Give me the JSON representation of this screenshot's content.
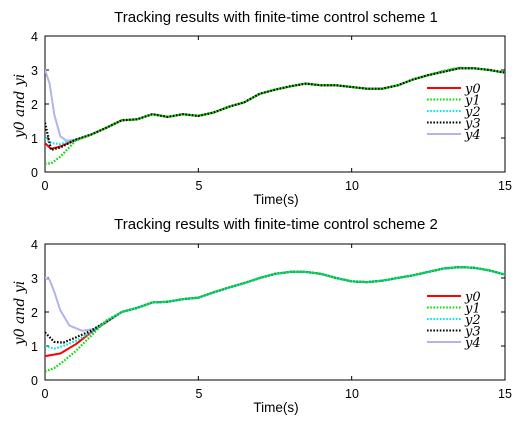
{
  "chart_data": [
    {
      "type": "line",
      "title": "Tracking results with finite-time control scheme 1",
      "xlabel": "Time(s)",
      "ylabel": "y0 and yi",
      "xlim": [
        0,
        15
      ],
      "ylim": [
        0,
        4
      ],
      "xticks": [
        "0",
        "5",
        "10",
        "15"
      ],
      "yticks": [
        "0",
        "1",
        "2",
        "3",
        "4"
      ],
      "grid": false,
      "legend_position": "bottom-right",
      "series": [
        {
          "name": "y0",
          "color": "#ff0000",
          "dash": "solid",
          "x": [
            0,
            0.2,
            0.5,
            1,
            1.5,
            2,
            2.5,
            3,
            3.5,
            4,
            4.5,
            5,
            5.5,
            6,
            6.5,
            7,
            7.5,
            8,
            8.5,
            9,
            9.5,
            10,
            10.5,
            11,
            11.5,
            12,
            12.5,
            13,
            13.5,
            14,
            14.5,
            15
          ],
          "y": [
            0.85,
            0.68,
            0.75,
            0.95,
            1.1,
            1.3,
            1.52,
            1.55,
            1.7,
            1.62,
            1.7,
            1.65,
            1.75,
            1.92,
            2.05,
            2.3,
            2.42,
            2.52,
            2.6,
            2.55,
            2.55,
            2.5,
            2.45,
            2.45,
            2.55,
            2.72,
            2.85,
            2.95,
            3.05,
            3.05,
            3.0,
            2.92
          ]
        },
        {
          "name": "y1",
          "color": "#00dd00",
          "dash": "dotted",
          "x": [
            0,
            0.2,
            0.5,
            1,
            1.5,
            2,
            2.5,
            3,
            3.5,
            4,
            4.5,
            5,
            5.5,
            6,
            6.5,
            7,
            7.5,
            8,
            8.5,
            9,
            9.5,
            10,
            10.5,
            11,
            11.5,
            12,
            12.5,
            13,
            13.5,
            14,
            14.5,
            15
          ],
          "y": [
            0.25,
            0.25,
            0.45,
            0.92,
            1.1,
            1.3,
            1.52,
            1.55,
            1.7,
            1.62,
            1.7,
            1.65,
            1.75,
            1.92,
            2.05,
            2.3,
            2.42,
            2.52,
            2.6,
            2.55,
            2.55,
            2.5,
            2.45,
            2.45,
            2.55,
            2.72,
            2.85,
            2.98,
            3.07,
            3.05,
            3.0,
            2.92
          ]
        },
        {
          "name": "y2",
          "color": "#00e5e5",
          "dash": "dotted",
          "x": [
            0,
            0.2,
            0.5,
            1,
            1.5,
            2,
            2.5,
            3,
            3.5,
            4,
            4.5,
            5,
            5.5,
            6,
            6.5,
            7,
            7.5,
            8,
            8.5,
            9,
            9.5,
            10,
            10.5,
            11,
            11.5,
            12,
            12.5,
            13,
            13.5,
            14,
            14.5,
            15
          ],
          "y": [
            1.0,
            0.85,
            0.82,
            0.95,
            1.1,
            1.3,
            1.52,
            1.55,
            1.7,
            1.62,
            1.7,
            1.65,
            1.75,
            1.92,
            2.05,
            2.3,
            2.42,
            2.52,
            2.6,
            2.55,
            2.55,
            2.5,
            2.45,
            2.45,
            2.55,
            2.72,
            2.85,
            2.95,
            3.05,
            3.05,
            3.0,
            2.92
          ]
        },
        {
          "name": "y3",
          "color": "#000000",
          "dash": "dotted",
          "x": [
            0,
            0.2,
            0.5,
            1,
            1.5,
            2,
            2.5,
            3,
            3.5,
            4,
            4.5,
            5,
            5.5,
            6,
            6.5,
            7,
            7.5,
            8,
            8.5,
            9,
            9.5,
            10,
            10.5,
            11,
            11.5,
            12,
            12.5,
            13,
            13.5,
            14,
            14.5,
            15
          ],
          "y": [
            1.45,
            0.65,
            0.72,
            0.95,
            1.1,
            1.3,
            1.52,
            1.55,
            1.7,
            1.62,
            1.7,
            1.65,
            1.75,
            1.92,
            2.05,
            2.3,
            2.42,
            2.52,
            2.6,
            2.55,
            2.55,
            2.5,
            2.45,
            2.45,
            2.55,
            2.72,
            2.85,
            2.95,
            3.05,
            3.05,
            3.0,
            2.92
          ]
        },
        {
          "name": "y4",
          "color": "#b3b3ee",
          "dash": "solid",
          "x": [
            0,
            0.15,
            0.3,
            0.5,
            0.7,
            1,
            1.5,
            2,
            2.5,
            3,
            3.5,
            4,
            4.5,
            5,
            5.5,
            6,
            6.5,
            7,
            7.5,
            8,
            8.5,
            9,
            9.5,
            10,
            10.5,
            11,
            11.5,
            12,
            12.5,
            13,
            13.5,
            14,
            14.5,
            15
          ],
          "y": [
            3.0,
            2.6,
            1.7,
            1.05,
            0.92,
            0.95,
            1.1,
            1.3,
            1.52,
            1.55,
            1.7,
            1.62,
            1.7,
            1.65,
            1.75,
            1.92,
            2.05,
            2.3,
            2.42,
            2.52,
            2.6,
            2.55,
            2.55,
            2.5,
            2.45,
            2.45,
            2.55,
            2.72,
            2.85,
            2.95,
            3.05,
            3.05,
            3.0,
            2.92
          ]
        }
      ]
    },
    {
      "type": "line",
      "title": "Tracking results with finite-time control scheme 2",
      "xlabel": "Time(s)",
      "ylabel": "y0 and yi",
      "xlim": [
        0,
        15
      ],
      "ylim": [
        0,
        4
      ],
      "xticks": [
        "0",
        "5",
        "10",
        "15"
      ],
      "yticks": [
        "0",
        "1",
        "2",
        "3",
        "4"
      ],
      "grid": false,
      "legend_position": "bottom-right",
      "series": [
        {
          "name": "y0",
          "color": "#ff0000",
          "dash": "solid",
          "x": [
            0,
            0.5,
            1,
            1.5,
            2,
            2.5,
            3,
            3.5,
            4,
            4.5,
            5,
            5.5,
            6,
            6.5,
            7,
            7.5,
            8,
            8.5,
            9,
            9.5,
            10,
            10.5,
            11,
            11.5,
            12,
            12.5,
            13,
            13.5,
            14,
            14.5,
            15
          ],
          "y": [
            0.7,
            0.78,
            1.05,
            1.4,
            1.7,
            2.0,
            2.12,
            2.28,
            2.3,
            2.38,
            2.42,
            2.58,
            2.72,
            2.85,
            3.0,
            3.12,
            3.18,
            3.18,
            3.12,
            3.0,
            2.9,
            2.88,
            2.92,
            3.0,
            3.08,
            3.18,
            3.28,
            3.32,
            3.3,
            3.22,
            3.1
          ]
        },
        {
          "name": "y1",
          "color": "#00dd00",
          "dash": "dotted",
          "x": [
            0,
            0.3,
            0.6,
            1,
            1.5,
            2,
            2.5,
            3,
            3.5,
            4,
            4.5,
            5,
            5.5,
            6,
            6.5,
            7,
            7.5,
            8,
            8.5,
            9,
            9.5,
            10,
            10.5,
            11,
            11.5,
            12,
            12.5,
            13,
            13.5,
            14,
            14.5,
            15
          ],
          "y": [
            0.25,
            0.35,
            0.55,
            0.85,
            1.3,
            1.75,
            2.0,
            2.12,
            2.28,
            2.3,
            2.38,
            2.42,
            2.58,
            2.72,
            2.85,
            3.0,
            3.12,
            3.18,
            3.18,
            3.12,
            3.0,
            2.9,
            2.88,
            2.92,
            3.0,
            3.08,
            3.18,
            3.28,
            3.32,
            3.3,
            3.22,
            3.1
          ]
        },
        {
          "name": "y2",
          "color": "#00e5e5",
          "dash": "dotted",
          "x": [
            0,
            0.3,
            0.6,
            1,
            1.5,
            2,
            2.5,
            3,
            3.5,
            4,
            4.5,
            5,
            5.5,
            6,
            6.5,
            7,
            7.5,
            8,
            8.5,
            9,
            9.5,
            10,
            10.5,
            11,
            11.5,
            12,
            12.5,
            13,
            13.5,
            14,
            14.5,
            15
          ],
          "y": [
            1.0,
            0.92,
            1.0,
            1.15,
            1.4,
            1.72,
            2.0,
            2.12,
            2.28,
            2.3,
            2.38,
            2.42,
            2.58,
            2.72,
            2.85,
            3.0,
            3.12,
            3.18,
            3.18,
            3.12,
            3.0,
            2.9,
            2.88,
            2.92,
            3.0,
            3.08,
            3.18,
            3.28,
            3.32,
            3.3,
            3.22,
            3.1
          ]
        },
        {
          "name": "y3",
          "color": "#000000",
          "dash": "dotted",
          "x": [
            0,
            0.3,
            0.6,
            1,
            1.5,
            2,
            2.5,
            3,
            3.5,
            4,
            4.5,
            5,
            5.5,
            6,
            6.5,
            7,
            7.5,
            8,
            8.5,
            9,
            9.5,
            10,
            10.5,
            11,
            11.5,
            12,
            12.5,
            13,
            13.5,
            14,
            14.5,
            15
          ],
          "y": [
            1.4,
            1.12,
            1.1,
            1.25,
            1.45,
            1.72,
            2.0,
            2.12,
            2.28,
            2.3,
            2.38,
            2.42,
            2.58,
            2.72,
            2.85,
            3.0,
            3.12,
            3.18,
            3.18,
            3.12,
            3.0,
            2.9,
            2.88,
            2.92,
            3.0,
            3.08,
            3.18,
            3.28,
            3.32,
            3.3,
            3.22,
            3.1
          ]
        },
        {
          "name": "y4",
          "color": "#b3b3ee",
          "dash": "solid",
          "x": [
            0,
            0.15,
            0.3,
            0.5,
            0.8,
            1.2,
            1.6,
            2,
            2.5,
            3,
            3.5,
            4,
            4.5,
            5,
            5.5,
            6,
            6.5,
            7,
            7.5,
            8,
            8.5,
            9,
            9.5,
            10,
            10.5,
            11,
            11.5,
            12,
            12.5,
            13,
            13.5,
            14,
            14.5,
            15
          ],
          "y": [
            3.0,
            2.95,
            2.6,
            2.05,
            1.6,
            1.45,
            1.5,
            1.72,
            2.0,
            2.12,
            2.28,
            2.3,
            2.38,
            2.42,
            2.58,
            2.72,
            2.85,
            3.0,
            3.12,
            3.18,
            3.18,
            3.12,
            3.0,
            2.9,
            2.88,
            2.92,
            3.0,
            3.08,
            3.18,
            3.28,
            3.32,
            3.3,
            3.22,
            3.1
          ]
        }
      ]
    }
  ]
}
